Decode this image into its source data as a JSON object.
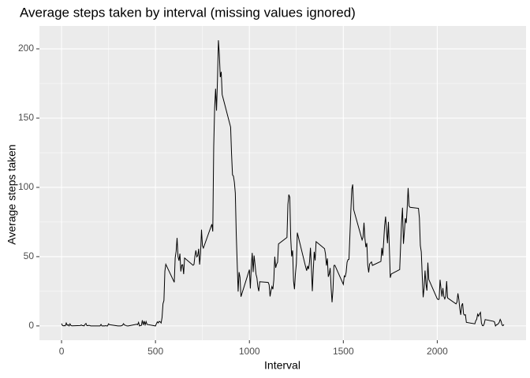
{
  "chart_data": {
    "type": "line",
    "title": "Average steps taken by interval (missing values ignored)",
    "x_label": "Interval",
    "y_label": "Average steps taken",
    "xlim": [
      -117.75,
      2472.75
    ],
    "ylim": [
      -10.3,
      216.5
    ],
    "xticks": [
      0,
      500,
      1000,
      1500,
      2000
    ],
    "yticks": [
      0,
      50,
      100,
      150,
      200
    ],
    "grid": true,
    "series": [
      {
        "color": "#000000",
        "x": [
          0,
          5,
          10,
          15,
          20,
          25,
          30,
          35,
          40,
          45,
          50,
          55,
          100,
          105,
          110,
          115,
          120,
          125,
          130,
          135,
          140,
          145,
          150,
          155,
          200,
          205,
          210,
          215,
          220,
          225,
          230,
          235,
          240,
          245,
          250,
          255,
          300,
          305,
          310,
          315,
          320,
          325,
          330,
          335,
          340,
          345,
          350,
          355,
          400,
          405,
          410,
          415,
          420,
          425,
          430,
          435,
          440,
          445,
          450,
          455,
          500,
          505,
          510,
          515,
          520,
          525,
          530,
          535,
          540,
          545,
          550,
          555,
          600,
          605,
          610,
          615,
          620,
          625,
          630,
          635,
          640,
          645,
          650,
          655,
          700,
          705,
          710,
          715,
          720,
          725,
          730,
          735,
          740,
          745,
          750,
          755,
          800,
          805,
          810,
          815,
          820,
          825,
          830,
          835,
          840,
          845,
          850,
          855,
          900,
          905,
          910,
          915,
          920,
          925,
          930,
          935,
          940,
          945,
          950,
          955,
          1000,
          1005,
          1010,
          1015,
          1020,
          1025,
          1030,
          1035,
          1040,
          1045,
          1050,
          1055,
          1100,
          1105,
          1110,
          1115,
          1120,
          1125,
          1130,
          1135,
          1140,
          1145,
          1150,
          1155,
          1200,
          1205,
          1210,
          1215,
          1220,
          1225,
          1230,
          1235,
          1240,
          1245,
          1250,
          1255,
          1300,
          1305,
          1310,
          1315,
          1320,
          1325,
          1330,
          1335,
          1340,
          1345,
          1350,
          1355,
          1400,
          1405,
          1410,
          1415,
          1420,
          1425,
          1430,
          1435,
          1440,
          1445,
          1450,
          1455,
          1500,
          1505,
          1510,
          1515,
          1520,
          1525,
          1530,
          1535,
          1540,
          1545,
          1550,
          1555,
          1600,
          1605,
          1610,
          1615,
          1620,
          1625,
          1630,
          1635,
          1640,
          1645,
          1650,
          1655,
          1700,
          1705,
          1710,
          1715,
          1720,
          1725,
          1730,
          1735,
          1740,
          1745,
          1750,
          1755,
          1800,
          1805,
          1810,
          1815,
          1820,
          1825,
          1830,
          1835,
          1840,
          1845,
          1850,
          1855,
          1900,
          1905,
          1910,
          1915,
          1920,
          1925,
          1930,
          1935,
          1940,
          1945,
          1950,
          1955,
          2000,
          2005,
          2010,
          2015,
          2020,
          2025,
          2030,
          2035,
          2040,
          2045,
          2050,
          2055,
          2100,
          2105,
          2110,
          2115,
          2120,
          2125,
          2130,
          2135,
          2140,
          2145,
          2150,
          2155,
          2200,
          2205,
          2210,
          2215,
          2220,
          2225,
          2230,
          2235,
          2240,
          2245,
          2250,
          2255,
          2300,
          2305,
          2310,
          2315,
          2320,
          2325,
          2330,
          2335,
          2340,
          2345,
          2350,
          2355
        ],
        "values": [
          1.7,
          0.3,
          0.1,
          0.2,
          0.1,
          2.1,
          0.5,
          0.9,
          0,
          1.5,
          0.3,
          0.1,
          0.3,
          0.7,
          0.2,
          0.3,
          0,
          1.1,
          1.8,
          0.2,
          0.2,
          0.4,
          0.3,
          0,
          0,
          0,
          1.1,
          0,
          0,
          0.1,
          0,
          0.2,
          0,
          0,
          1.5,
          0.9,
          0,
          0,
          0,
          0,
          0.2,
          0.6,
          1.6,
          0.6,
          0.5,
          0.1,
          0,
          0,
          1.2,
          0.9,
          2.6,
          0,
          0.3,
          0.4,
          4.1,
          0.7,
          3.5,
          0.8,
          3.1,
          1.1,
          0,
          1.6,
          3,
          2.2,
          3.3,
          3,
          2.1,
          6.1,
          16,
          18.3,
          39.5,
          44.5,
          31.5,
          49.3,
          53.8,
          63.5,
          50,
          47.1,
          52.2,
          39.3,
          44,
          44.2,
          37.4,
          49,
          43.8,
          44.4,
          50.5,
          54.5,
          49.9,
          50.8,
          55.7,
          44.3,
          52.3,
          69.5,
          57.8,
          56.2,
          73.4,
          68.2,
          129.4,
          157.5,
          171.2,
          155.4,
          177.3,
          206.2,
          195.9,
          179.6,
          183.4,
          167,
          143.5,
          124,
          109.1,
          108.1,
          103.7,
          95.9,
          66.2,
          45.2,
          24.8,
          38.8,
          35,
          21.1,
          40.6,
          27,
          42.4,
          52.7,
          38.9,
          50.8,
          44.3,
          37.4,
          34.7,
          28.3,
          25.1,
          31.9,
          31.4,
          29.7,
          21.3,
          25.5,
          28.4,
          26.5,
          33.4,
          50,
          42,
          44.6,
          46,
          59.2,
          63.9,
          87.7,
          94.8,
          92.8,
          63.4,
          50.2,
          54.5,
          32.4,
          26.5,
          37.7,
          45.1,
          67.3,
          42.3,
          39.9,
          43.3,
          41,
          46.2,
          56.4,
          42.8,
          25.1,
          40,
          53.5,
          47.3,
          60.8,
          55.8,
          52,
          43.6,
          48.7,
          35.5,
          37.5,
          41.8,
          27.5,
          17.1,
          26.1,
          43.6,
          43.8,
          30,
          36.1,
          35.5,
          38.8,
          46,
          47.8,
          48.1,
          65.3,
          82.9,
          98.7,
          102.1,
          84,
          62.1,
          64.1,
          74.5,
          63.2,
          56.9,
          59.8,
          43.9,
          38.6,
          44.7,
          45.5,
          46.2,
          43.7,
          46.6,
          56.3,
          50.7,
          61.2,
          72.7,
          78.9,
          68.9,
          59.7,
          75.1,
          56.5,
          34.8,
          37.5,
          40.7,
          58,
          74.7,
          85.3,
          59.3,
          67.8,
          77.7,
          74.2,
          85.3,
          99.5,
          86.6,
          85.6,
          84.9,
          77.8,
          58,
          53.4,
          36.3,
          20.7,
          27.4,
          40,
          30.2,
          25.5,
          45.7,
          33.5,
          19.6,
          19,
          19.3,
          33.3,
          26.8,
          21.2,
          27.3,
          21.3,
          19.5,
          21.3,
          32.3,
          20.2,
          15.9,
          17.2,
          23.5,
          19.2,
          12.5,
          8,
          14.7,
          16.3,
          8.7,
          7.8,
          8.1,
          2.6,
          1.5,
          3.7,
          4.8,
          8.5,
          7.1,
          8.7,
          9.8,
          2.2,
          0.3,
          0.1,
          1.6,
          4.6,
          3.3,
          2.8,
          0,
          0.8,
          1,
          1.6,
          2.6,
          4.7,
          3.3,
          0.6,
          0.2,
          1.1
        ]
      }
    ]
  }
}
